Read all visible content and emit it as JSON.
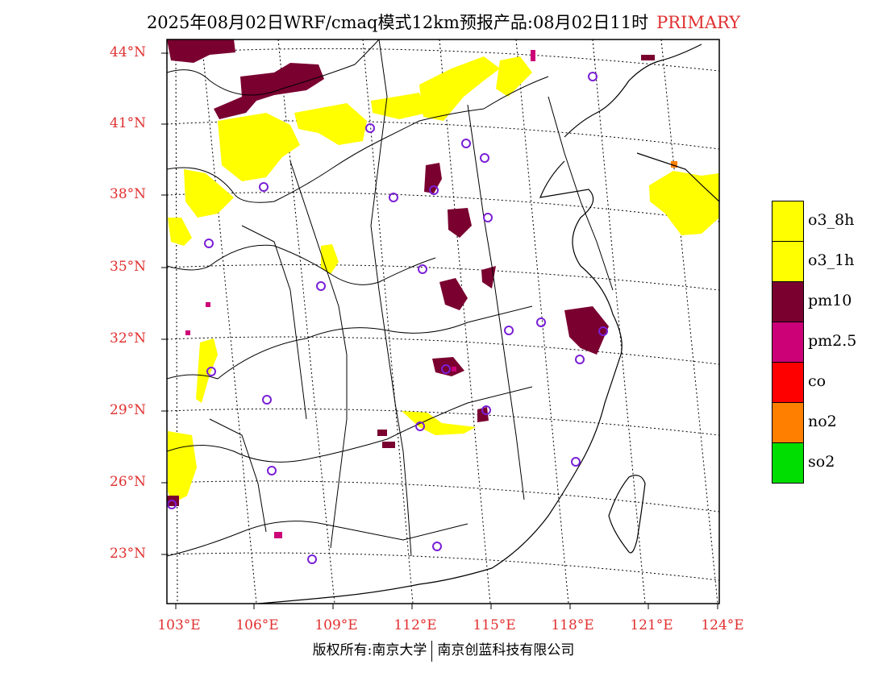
{
  "header": {
    "title": "2025年08月02日WRF/cmaq模式12km预报产品:08月02日11时",
    "tag": "PRIMARY"
  },
  "map": {
    "lat_labels": [
      "44°N",
      "41°N",
      "38°N",
      "35°N",
      "32°N",
      "29°N",
      "26°N",
      "23°N"
    ],
    "lon_labels": [
      "103°E",
      "106°E",
      "109°E",
      "112°E",
      "115°E",
      "118°E",
      "121°E",
      "124°E"
    ],
    "colors": {
      "o3": "#ffff00",
      "pm10": "#7a0030",
      "pm25": "#cc0077",
      "co": "#ff0000",
      "no2": "#ff8000",
      "so2": "#00dd00",
      "station": "#7a1fd6",
      "lat_label": "#e03030"
    }
  },
  "legend": [
    {
      "label": "o3_8h",
      "color": "#ffff00"
    },
    {
      "label": "o3_1h",
      "color": "#ffff00"
    },
    {
      "label": "pm10",
      "color": "#7a0030"
    },
    {
      "label": "pm2.5",
      "color": "#cc0077"
    },
    {
      "label": "co",
      "color": "#ff0000"
    },
    {
      "label": "no2",
      "color": "#ff8000"
    },
    {
      "label": "so2",
      "color": "#00dd00"
    }
  ],
  "footer": {
    "left": "版权所有:南京大学",
    "right": "南京创蓝科技有限公司"
  }
}
